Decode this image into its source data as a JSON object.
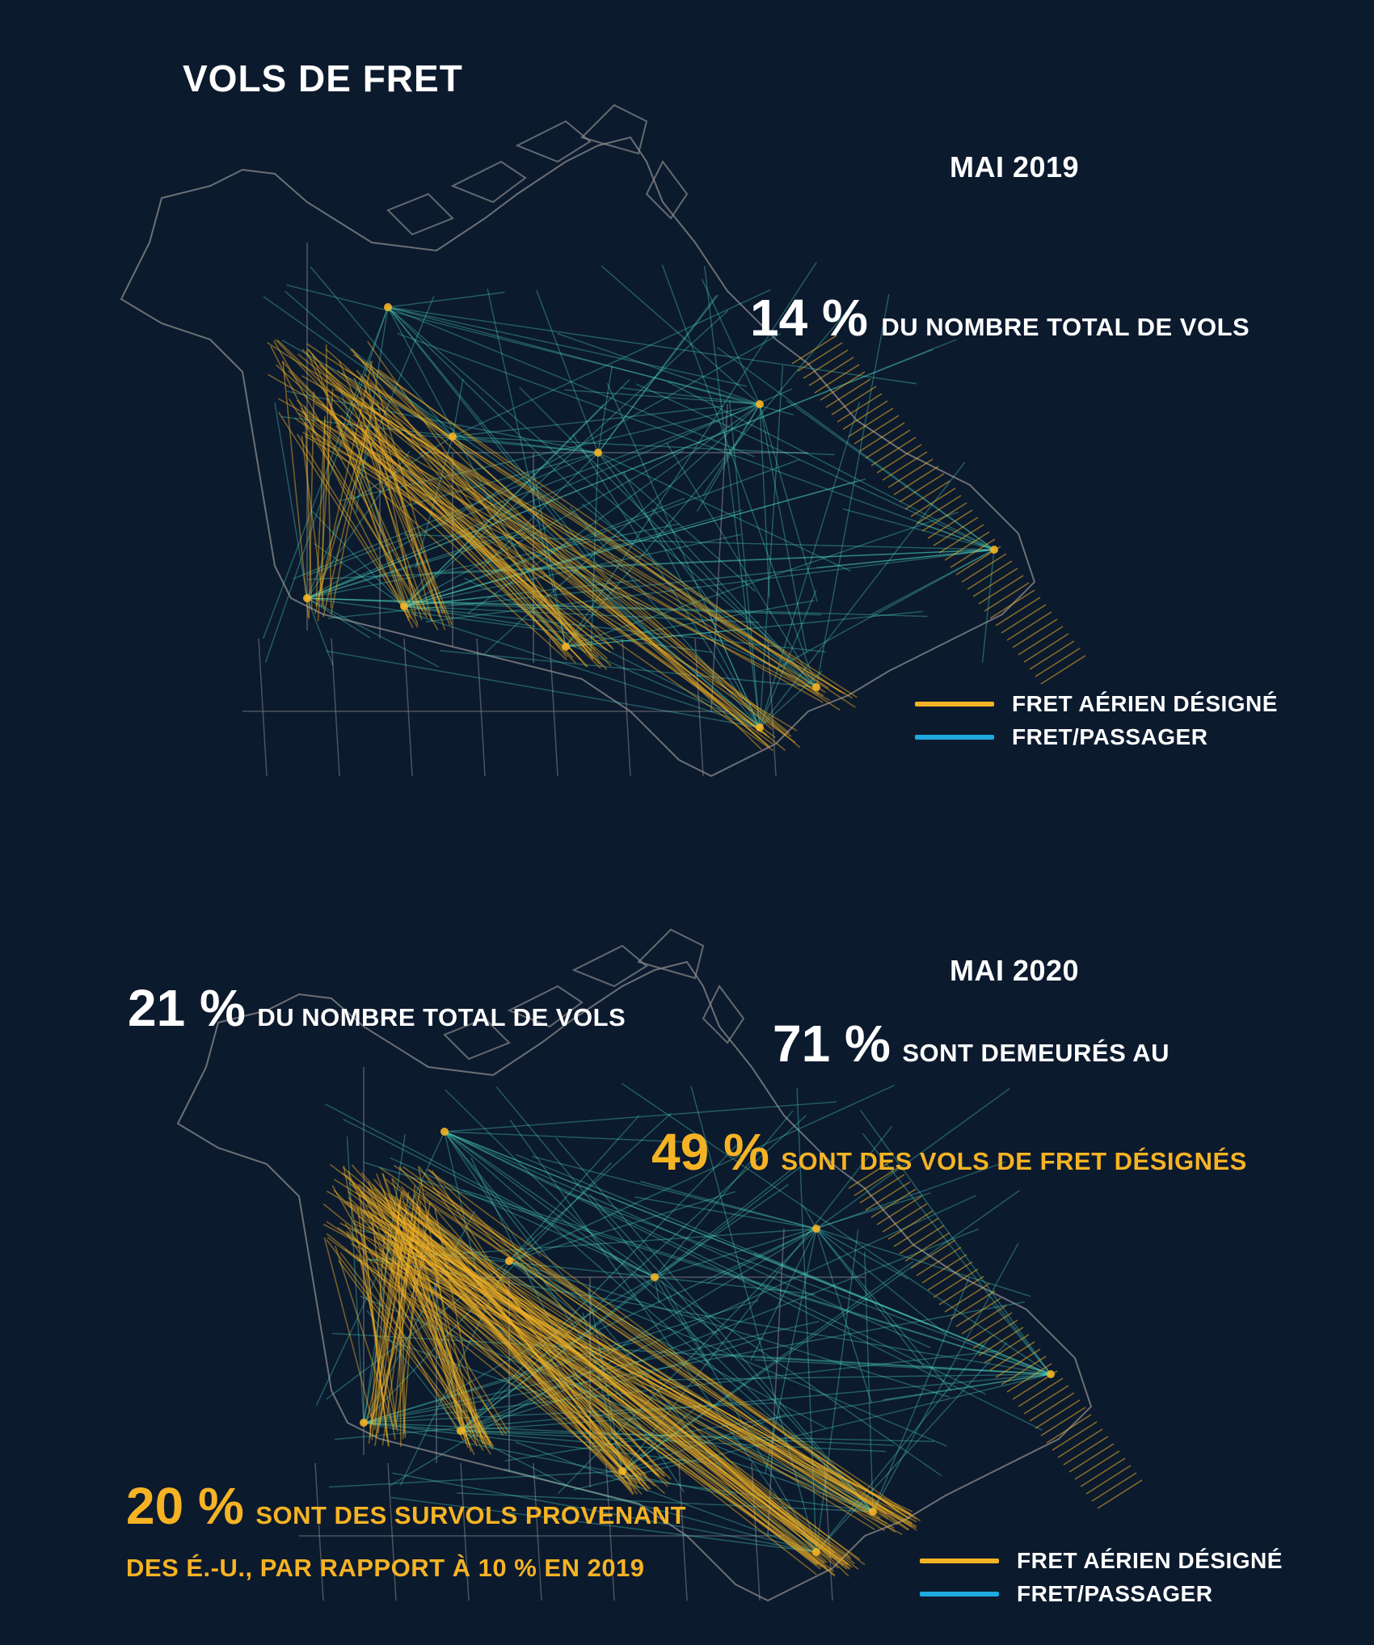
{
  "title": "VOLS DE FRET",
  "colors": {
    "background": "#0c1a2e",
    "designated_cargo": "#f5b324",
    "cargo_passenger": "#1fa9e0",
    "network_cyan": "#4fe0c8",
    "boundary": "#8c8c8c"
  },
  "panels": [
    {
      "period": "MAI 2019",
      "stats": [
        {
          "value": "14 %",
          "text": "DU NOMBRE TOTAL DE VOLS"
        }
      ]
    },
    {
      "period": "MAI 2020",
      "stats": [
        {
          "value": "21 %",
          "text": "DU NOMBRE TOTAL DE VOLS"
        },
        {
          "value": "71 %",
          "text": "SONT DEMEURÉS AU"
        },
        {
          "value": "49 %",
          "text": "SONT DES VOLS DE FRET DÉSIGNÉS"
        },
        {
          "value": "20 %",
          "text": "SONT DES SURVOLS PROVENANT",
          "text2": "DES É.-U., PAR RAPPORT À 10 % EN 2019"
        }
      ]
    }
  ],
  "legend": [
    {
      "label": "FRET AÉRIEN DÉSIGNÉ",
      "color": "#f5b324",
      "icon": "orange-line-swatch"
    },
    {
      "label": "FRET/PASSAGER",
      "color": "#1fa9e0",
      "icon": "blue-line-swatch"
    }
  ]
}
